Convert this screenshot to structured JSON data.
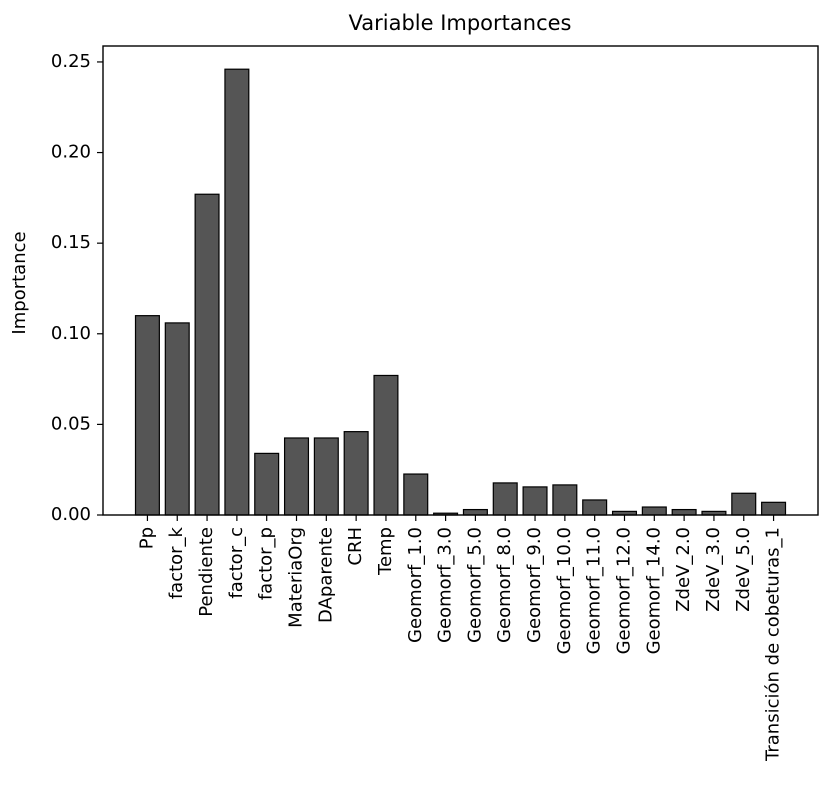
{
  "chart_data": {
    "type": "bar",
    "title": "Variable Importances",
    "y_label": "Importance",
    "categories": [
      "Pp",
      "factor_k",
      "Pendiente",
      "factor_c",
      "factor_p",
      "MateriaOrg",
      "DAparente",
      "CRH",
      "Temp",
      "Geomorf_1.0",
      "Geomorf_3.0",
      "Geomorf_5.0",
      "Geomorf_8.0",
      "Geomorf_9.0",
      "Geomorf_10.0",
      "Geomorf_11.0",
      "Geomorf_12.0",
      "Geomorf_14.0",
      "ZdeV_2.0",
      "ZdeV_3.0",
      "ZdeV_5.0",
      "Transición de cobeturas_1"
    ],
    "values": [
      0.11,
      0.106,
      0.177,
      0.246,
      0.034,
      0.0425,
      0.0425,
      0.046,
      0.077,
      0.0226,
      0.001,
      0.003,
      0.0177,
      0.0155,
      0.0166,
      0.0083,
      0.002,
      0.0044,
      0.003,
      0.002,
      0.012,
      0.007
    ],
    "color": "#555555",
    "ylim": [
      0,
      0.2588
    ],
    "yticks": [
      {
        "value": 0,
        "label": "0.00"
      },
      0.05,
      {
        "value": 0.1,
        "label": "0.10"
      },
      0.15,
      {
        "value": 0.2,
        "label": "0.20"
      },
      0.25
    ],
    "grid": false
  }
}
